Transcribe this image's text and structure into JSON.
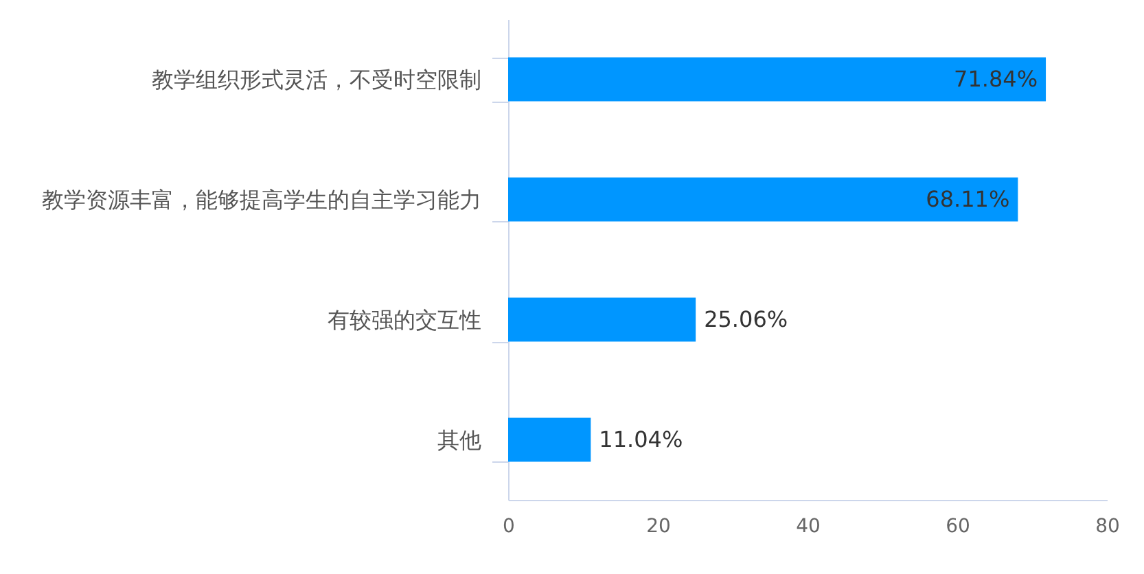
{
  "chart_data": {
    "type": "bar",
    "orientation": "horizontal",
    "categories": [
      "教学组织形式灵活，不受时空限制",
      "教学资源丰富，能够提高学生的自主学习能力",
      "有较强的交互性",
      "其他"
    ],
    "series": [
      {
        "color": "#0096ff",
        "values": [
          71.84,
          68.11,
          25.06,
          11.04
        ],
        "value_labels": [
          "71.84%",
          "68.11%",
          "25.06%",
          "11.04%"
        ]
      }
    ],
    "xlim": [
      0,
      80
    ],
    "xticks": [
      0,
      20,
      40,
      60,
      80
    ],
    "grid": false
  }
}
